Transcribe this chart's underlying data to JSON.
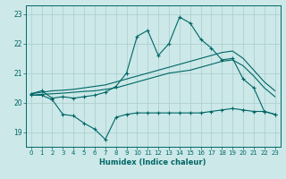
{
  "xlabel": "Humidex (Indice chaleur)",
  "xlim": [
    -0.5,
    23.5
  ],
  "ylim": [
    18.5,
    23.3
  ],
  "yticks": [
    19,
    20,
    21,
    22,
    23
  ],
  "xticks": [
    0,
    1,
    2,
    3,
    4,
    5,
    6,
    7,
    8,
    9,
    10,
    11,
    12,
    13,
    14,
    15,
    16,
    17,
    18,
    19,
    20,
    21,
    22,
    23
  ],
  "bg_color": "#cce8e8",
  "grid_color": "#aacccc",
  "line_color": "#006666",
  "line_max": {
    "x": [
      0,
      1,
      2,
      3,
      4,
      5,
      6,
      7,
      8,
      9,
      10,
      11,
      12,
      13,
      14,
      15,
      16,
      17,
      18,
      19,
      20,
      21,
      22,
      23
    ],
    "y": [
      20.3,
      20.4,
      20.15,
      20.2,
      20.15,
      20.2,
      20.25,
      20.35,
      20.55,
      21.0,
      22.25,
      22.45,
      21.6,
      22.0,
      22.9,
      22.7,
      22.15,
      21.85,
      21.45,
      21.5,
      20.8,
      20.5,
      19.7,
      19.6
    ]
  },
  "line_upper": {
    "x": [
      0,
      1,
      2,
      3,
      4,
      5,
      6,
      7,
      8,
      9,
      10,
      11,
      12,
      13,
      14,
      15,
      16,
      17,
      18,
      19,
      20,
      21,
      22,
      23
    ],
    "y": [
      20.3,
      20.35,
      20.4,
      20.42,
      20.45,
      20.5,
      20.55,
      20.6,
      20.7,
      20.8,
      20.9,
      21.0,
      21.1,
      21.2,
      21.3,
      21.4,
      21.5,
      21.6,
      21.7,
      21.75,
      21.5,
      21.1,
      20.7,
      20.4
    ]
  },
  "line_lower": {
    "x": [
      0,
      1,
      2,
      3,
      4,
      5,
      6,
      7,
      8,
      9,
      10,
      11,
      12,
      13,
      14,
      15,
      16,
      17,
      18,
      19,
      20,
      21,
      22,
      23
    ],
    "y": [
      20.25,
      20.28,
      20.3,
      20.32,
      20.35,
      20.38,
      20.4,
      20.45,
      20.5,
      20.6,
      20.7,
      20.8,
      20.9,
      21.0,
      21.05,
      21.1,
      21.2,
      21.3,
      21.4,
      21.45,
      21.25,
      20.9,
      20.5,
      20.2
    ]
  },
  "line_min": {
    "x": [
      0,
      1,
      2,
      3,
      4,
      5,
      6,
      7,
      8,
      9,
      10,
      11,
      12,
      13,
      14,
      15,
      16,
      17,
      18,
      19,
      20,
      21,
      22,
      23
    ],
    "y": [
      20.25,
      20.25,
      20.1,
      19.6,
      19.55,
      19.3,
      19.1,
      18.75,
      19.5,
      19.6,
      19.65,
      19.65,
      19.65,
      19.65,
      19.65,
      19.65,
      19.65,
      19.7,
      19.75,
      19.8,
      19.75,
      19.7,
      19.7,
      19.6
    ]
  }
}
